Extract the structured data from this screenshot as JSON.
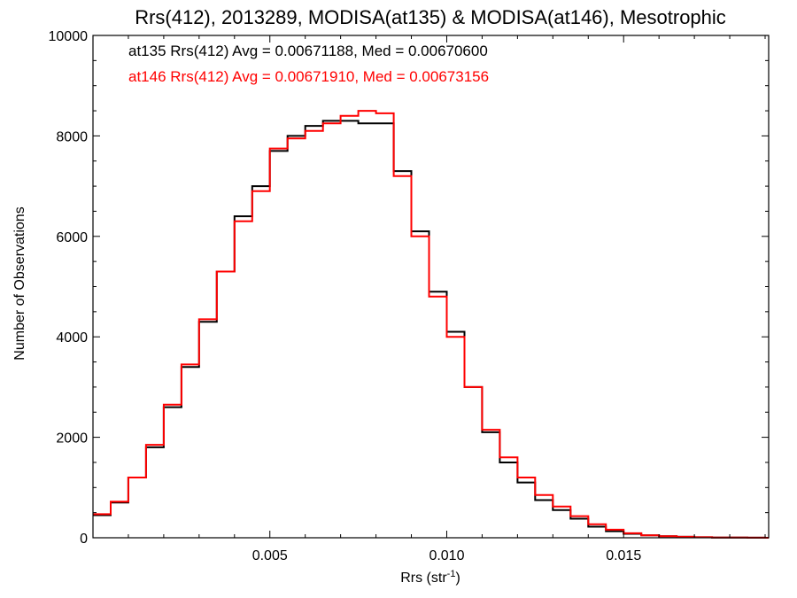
{
  "chart_data": {
    "type": "line",
    "title": "Rrs(412), 2013289, MODISA(at135) & MODISA(at146), Mesotrophic",
    "xlabel": "Rrs (str",
    "xlabel_sup": "-1",
    "xlabel_end": ")",
    "ylabel": "Number of Observations",
    "xlim": [
      0.0,
      0.0191
    ],
    "ylim": [
      0,
      10000
    ],
    "x_ticks": [
      0.005,
      0.01,
      0.015
    ],
    "x_tick_labels": [
      "0.005",
      "0.010",
      "0.015"
    ],
    "y_ticks": [
      0,
      2000,
      4000,
      6000,
      8000,
      10000
    ],
    "y_tick_labels": [
      "0",
      "2000",
      "4000",
      "6000",
      "8000",
      "10000"
    ],
    "grid": false,
    "legend_position": "top-left",
    "series": [
      {
        "name": "at135",
        "color": "#000000",
        "stats_text": "at135 Rrs(412) Avg = 0.00671188, Med = 0.00670600",
        "x": [
          0.0,
          0.0005,
          0.001,
          0.0015,
          0.002,
          0.0025,
          0.003,
          0.0035,
          0.004,
          0.0045,
          0.005,
          0.0055,
          0.006,
          0.0065,
          0.007,
          0.0075,
          0.008,
          0.0085,
          0.009,
          0.0095,
          0.01,
          0.0105,
          0.011,
          0.0115,
          0.012,
          0.0125,
          0.013,
          0.0135,
          0.014,
          0.0145,
          0.015,
          0.0155,
          0.016,
          0.0165,
          0.017,
          0.0175,
          0.018,
          0.0185,
          0.019
        ],
        "y": [
          450,
          700,
          1200,
          1800,
          2600,
          3400,
          4300,
          5300,
          6400,
          7000,
          7700,
          8000,
          8200,
          8300,
          8300,
          8250,
          8250,
          7300,
          6100,
          4900,
          4100,
          3000,
          2100,
          1500,
          1100,
          750,
          550,
          380,
          220,
          130,
          80,
          50,
          30,
          20,
          10,
          5,
          5,
          2,
          0
        ]
      },
      {
        "name": "at146",
        "color": "#ff0000",
        "stats_text": "at146 Rrs(412) Avg = 0.00671910, Med = 0.00673156",
        "x": [
          0.0,
          0.0005,
          0.001,
          0.0015,
          0.002,
          0.0025,
          0.003,
          0.0035,
          0.004,
          0.0045,
          0.005,
          0.0055,
          0.006,
          0.0065,
          0.007,
          0.0075,
          0.008,
          0.0085,
          0.009,
          0.0095,
          0.01,
          0.0105,
          0.011,
          0.0115,
          0.012,
          0.0125,
          0.013,
          0.0135,
          0.014,
          0.0145,
          0.015,
          0.0155,
          0.016,
          0.0165,
          0.017,
          0.0175,
          0.018,
          0.0185,
          0.019
        ],
        "y": [
          470,
          720,
          1200,
          1850,
          2650,
          3450,
          4350,
          5300,
          6300,
          6900,
          7750,
          7950,
          8100,
          8250,
          8400,
          8500,
          8450,
          7200,
          6000,
          4800,
          4000,
          3000,
          2150,
          1600,
          1200,
          850,
          620,
          430,
          270,
          160,
          90,
          50,
          30,
          20,
          10,
          5,
          5,
          2,
          0
        ]
      }
    ]
  }
}
